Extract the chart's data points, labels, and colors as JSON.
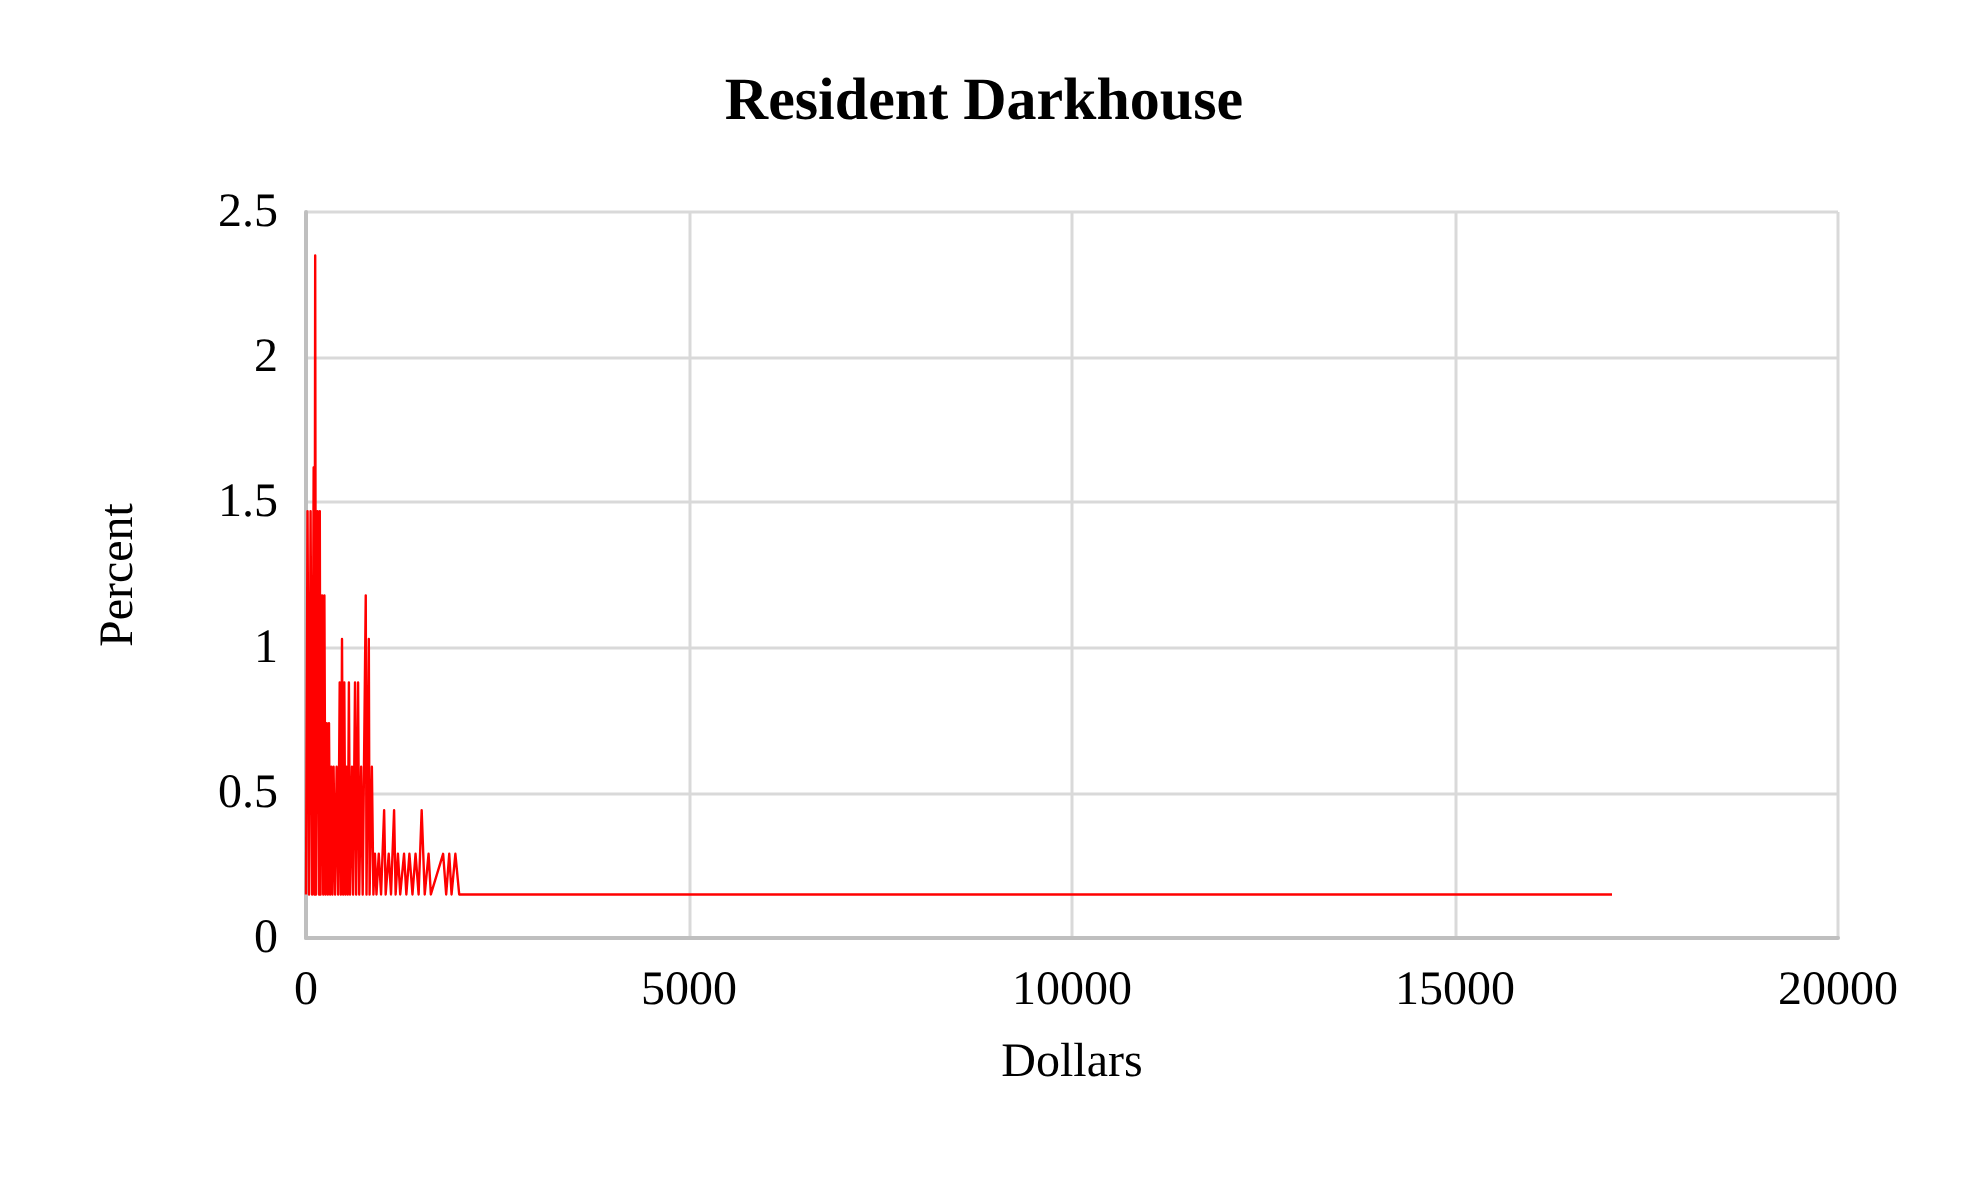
{
  "chart_data": {
    "type": "line",
    "title": "Resident Darkhouse",
    "xlabel": "Dollars",
    "ylabel": "Percent",
    "series": [
      {
        "color": "#ff0000",
        "x": [
          0,
          20,
          40,
          60,
          80,
          100,
          110,
          120,
          130,
          150,
          170,
          180,
          190,
          210,
          225,
          240,
          255,
          270,
          285,
          300,
          315,
          330,
          345,
          360,
          380,
          400,
          420,
          440,
          455,
          470,
          485,
          500,
          515,
          530,
          545,
          560,
          575,
          600,
          615,
          640,
          655,
          680,
          695,
          720,
          740,
          780,
          790,
          820,
          830,
          860,
          880,
          900,
          920,
          950,
          980,
          1020,
          1040,
          1080,
          1110,
          1150,
          1170,
          1200,
          1230,
          1280,
          1310,
          1350,
          1390,
          1430,
          1470,
          1510,
          1550,
          1600,
          1630,
          1790,
          1830,
          1870,
          1900,
          1950,
          2000,
          17050
        ],
        "values": [
          0.15,
          1.47,
          0.15,
          1.47,
          0.15,
          1.62,
          0.15,
          2.35,
          0.15,
          1.47,
          0.15,
          1.47,
          0.15,
          1.18,
          0.15,
          1.18,
          0.15,
          0.74,
          0.15,
          0.74,
          0.15,
          0.59,
          0.15,
          0.59,
          0.15,
          0.59,
          0.15,
          0.88,
          0.15,
          1.03,
          0.15,
          0.88,
          0.15,
          0.59,
          0.15,
          0.88,
          0.15,
          0.59,
          0.15,
          0.88,
          0.15,
          0.88,
          0.15,
          0.59,
          0.15,
          1.18,
          0.15,
          1.03,
          0.15,
          0.59,
          0.15,
          0.29,
          0.15,
          0.29,
          0.15,
          0.44,
          0.15,
          0.29,
          0.15,
          0.44,
          0.15,
          0.29,
          0.15,
          0.29,
          0.15,
          0.29,
          0.15,
          0.29,
          0.15,
          0.44,
          0.15,
          0.29,
          0.15,
          0.29,
          0.15,
          0.29,
          0.15,
          0.29,
          0.15,
          0.15
        ]
      }
    ],
    "xlim": [
      0,
      20000
    ],
    "xticks": [
      0,
      5000,
      10000,
      15000,
      20000
    ],
    "ylim": [
      0,
      2.5
    ],
    "yticks": [
      0,
      0.5,
      1,
      1.5,
      2,
      2.5
    ],
    "grid": true,
    "marker": "none",
    "line_style": "solid"
  }
}
